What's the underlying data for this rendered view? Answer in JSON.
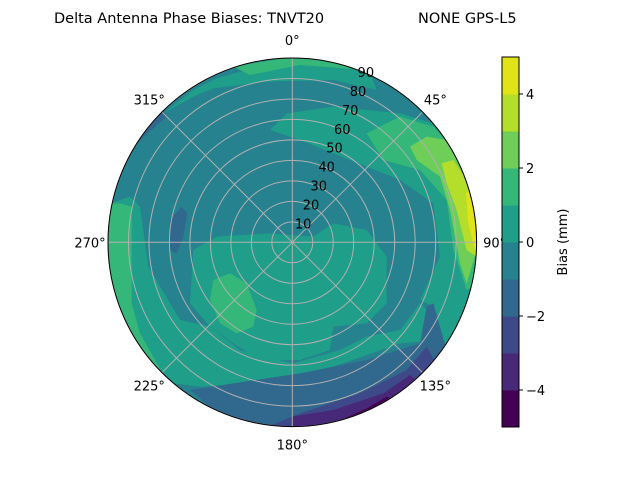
{
  "chart_data": {
    "type": "heatmap",
    "subtype": "polar filled contour",
    "title_left": "Delta Antenna Phase Biases: TNVT20",
    "title_right": "NONE GPS-L5",
    "theta_direction": "clockwise",
    "theta_zero": "top",
    "theta_ticks": [
      "0°",
      "45°",
      "90°",
      "135°",
      "180°",
      "225°",
      "270°",
      "315°"
    ],
    "radial_ticks": [
      "10",
      "20",
      "30",
      "40",
      "50",
      "60",
      "70",
      "80",
      "90"
    ],
    "rlim": [
      0,
      90
    ],
    "grid": true,
    "colorbar": {
      "label": "Bias (mm)",
      "levels": [
        -5,
        -4,
        -3,
        -2,
        -1,
        0,
        1,
        2,
        3,
        4,
        5
      ],
      "ticks": [
        "−4",
        "−2",
        "0",
        "2",
        "4"
      ],
      "tick_values": [
        -4,
        -2,
        0,
        2,
        4
      ],
      "colors": [
        "#440154",
        "#482878",
        "#3e4989",
        "#31688e",
        "#26828e",
        "#1f9e89",
        "#35b779",
        "#6ece58",
        "#b5de2b",
        "#dfe318"
      ],
      "colormap": "viridis"
    },
    "regions_summary": [
      {
        "area": "east edge near 70-90° elevation angle, azimuth 60-100°",
        "range": [
          3,
          5
        ]
      },
      {
        "area": "northeast sector",
        "range": [
          1,
          3
        ]
      },
      {
        "area": "south-southeast outer ring",
        "range": [
          -5,
          -2
        ]
      },
      {
        "area": "center and most of sky",
        "range": [
          -1,
          1
        ]
      }
    ]
  }
}
